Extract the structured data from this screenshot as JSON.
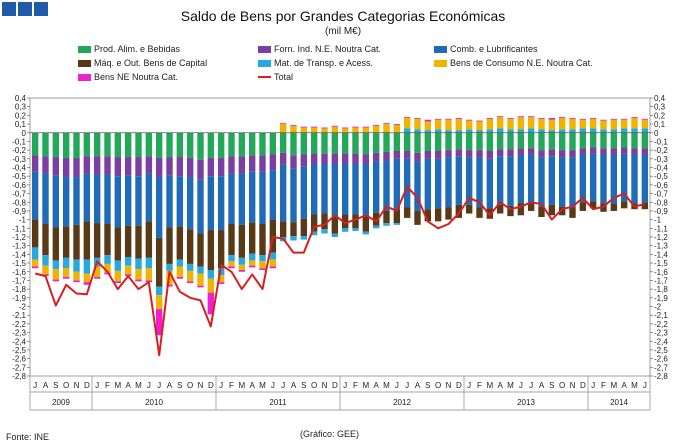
{
  "header": {
    "title": "Saldo de Bens por Grandes Categorias Económicas",
    "subtitle": "(mil M€)"
  },
  "footer": {
    "source": "Fonte: INE",
    "credit": "(Gráfico: GEE)"
  },
  "chart_data": {
    "type": "bar",
    "stacked": true,
    "title": "Saldo de Bens por Grandes Categorias Económicas",
    "ylabel": "mil M€",
    "ylim": [
      -2.8,
      0.4
    ],
    "yticks": [
      0.4,
      0.3,
      0.2,
      0.1,
      0.0,
      -0.1,
      -0.2,
      -0.3,
      -0.4,
      -0.5,
      -0.6,
      -0.7,
      -0.8,
      -0.9,
      -1.0,
      -1.1,
      -1.2,
      -1.3,
      -1.4,
      -1.5,
      -1.6,
      -1.7,
      -1.8,
      -1.9,
      -2.0,
      -2.1,
      -2.2,
      -2.3,
      -2.4,
      -2.5,
      -2.6,
      -2.7,
      -2.8
    ],
    "ytick_labels": [
      "0,4",
      "0,3",
      "0,2",
      "0,1",
      "0",
      "-0,1",
      "-0,2",
      "-0,3",
      "-0,4",
      "-0,5",
      "-0,6",
      "-0,7",
      "-0,8",
      "-0,9",
      "-1",
      "-1,1",
      "-1,2",
      "-1,3",
      "-1,4",
      "-1,5",
      "-1,6",
      "-1,7",
      "-1,8",
      "-1,9",
      "-2",
      "-2,1",
      "-2,2",
      "-2,3",
      "-2,4",
      "-2,5",
      "-2,6",
      "-2,7",
      "-2,8"
    ],
    "month_labels": [
      "J",
      "A",
      "S",
      "O",
      "N",
      "D",
      "J",
      "F",
      "M",
      "A",
      "M",
      "J",
      "J",
      "A",
      "S",
      "O",
      "N",
      "D",
      "J",
      "F",
      "M",
      "A",
      "M",
      "J",
      "J",
      "A",
      "S",
      "O",
      "N",
      "D",
      "J",
      "F",
      "M",
      "A",
      "M",
      "J",
      "J",
      "A",
      "S",
      "O",
      "N",
      "D",
      "J",
      "F",
      "M",
      "A",
      "M",
      "J",
      "J",
      "A",
      "S",
      "O",
      "N",
      "D",
      "J",
      "F",
      "M",
      "A",
      "M",
      "J"
    ],
    "year_labels": [
      {
        "label": "2009",
        "start": 0,
        "end": 5
      },
      {
        "label": "2010",
        "start": 6,
        "end": 17
      },
      {
        "label": "2011",
        "start": 18,
        "end": 29
      },
      {
        "label": "2012",
        "start": 30,
        "end": 41
      },
      {
        "label": "2013",
        "start": 42,
        "end": 53
      },
      {
        "label": "2014",
        "start": 54,
        "end": 59
      }
    ],
    "series": [
      {
        "name": "Prod. Alim. e Bebidas",
        "color": "#23a85a",
        "values": [
          -0.26,
          -0.27,
          -0.28,
          -0.29,
          -0.29,
          -0.27,
          -0.27,
          -0.27,
          -0.28,
          -0.28,
          -0.28,
          -0.27,
          -0.29,
          -0.28,
          -0.28,
          -0.29,
          -0.31,
          -0.29,
          -0.29,
          -0.27,
          -0.27,
          -0.26,
          -0.26,
          -0.25,
          -0.23,
          -0.26,
          -0.25,
          -0.24,
          -0.24,
          -0.24,
          -0.24,
          -0.24,
          -0.25,
          -0.23,
          -0.22,
          -0.21,
          -0.21,
          -0.23,
          -0.21,
          -0.21,
          -0.2,
          -0.19,
          -0.2,
          -0.2,
          -0.21,
          -0.19,
          -0.19,
          -0.18,
          -0.18,
          -0.2,
          -0.19,
          -0.2,
          -0.2,
          -0.18,
          -0.17,
          -0.18,
          -0.18,
          -0.17,
          -0.18,
          -0.18
        ]
      },
      {
        "name": "Forn. Ind. N.E. Noutra Cat.",
        "color": "#7b3fa0",
        "values": [
          -0.19,
          -0.2,
          -0.21,
          -0.22,
          -0.22,
          -0.2,
          -0.21,
          -0.21,
          -0.22,
          -0.21,
          -0.22,
          -0.2,
          -0.22,
          -0.21,
          -0.22,
          -0.22,
          -0.23,
          -0.21,
          -0.21,
          -0.2,
          -0.2,
          -0.19,
          -0.19,
          -0.18,
          -0.14,
          -0.15,
          -0.14,
          -0.12,
          -0.12,
          -0.12,
          -0.12,
          -0.12,
          -0.11,
          -0.1,
          -0.1,
          -0.09,
          -0.09,
          -0.1,
          -0.09,
          -0.09,
          -0.08,
          -0.08,
          -0.08,
          -0.08,
          -0.09,
          -0.08,
          -0.08,
          -0.07,
          -0.07,
          -0.08,
          -0.08,
          -0.08,
          -0.08,
          -0.07,
          -0.07,
          -0.07,
          -0.07,
          -0.07,
          -0.07,
          -0.07
        ]
      },
      {
        "name": "Comb. e Lubrificantes",
        "color": "#1f6bb8",
        "values": [
          -0.55,
          -0.58,
          -0.6,
          -0.57,
          -0.55,
          -0.55,
          -0.56,
          -0.57,
          -0.59,
          -0.58,
          -0.57,
          -0.55,
          -0.7,
          -0.6,
          -0.58,
          -0.6,
          -0.62,
          -0.62,
          -0.62,
          -0.58,
          -0.59,
          -0.58,
          -0.6,
          -0.57,
          -0.65,
          -0.62,
          -0.6,
          -0.58,
          -0.57,
          -0.6,
          -0.58,
          -0.58,
          -0.6,
          -0.59,
          -0.58,
          -0.58,
          -0.56,
          -0.57,
          -0.58,
          -0.57,
          -0.58,
          -0.56,
          -0.55,
          -0.58,
          -0.57,
          -0.56,
          -0.57,
          -0.56,
          -0.55,
          -0.57,
          -0.56,
          -0.57,
          -0.58,
          -0.55,
          -0.55,
          -0.56,
          -0.57,
          -0.55,
          -0.56,
          -0.55
        ]
      },
      {
        "name": "Máq. e Out. Bens de Capital",
        "color": "#5a3a16",
        "values": [
          -0.32,
          -0.36,
          -0.38,
          -0.36,
          -0.4,
          -0.44,
          -0.4,
          -0.36,
          -0.38,
          -0.36,
          -0.38,
          -0.42,
          -0.56,
          -0.42,
          -0.38,
          -0.4,
          -0.38,
          -0.46,
          -0.44,
          -0.36,
          -0.38,
          -0.36,
          -0.36,
          -0.38,
          -0.18,
          -0.16,
          -0.2,
          -0.2,
          -0.18,
          -0.2,
          -0.16,
          -0.16,
          -0.18,
          -0.15,
          -0.14,
          -0.16,
          -0.12,
          -0.16,
          -0.14,
          -0.15,
          -0.14,
          -0.15,
          -0.1,
          -0.12,
          -0.12,
          -0.1,
          -0.12,
          -0.14,
          -0.1,
          -0.12,
          -0.12,
          -0.1,
          -0.12,
          -0.1,
          -0.08,
          -0.1,
          -0.08,
          -0.08,
          -0.07,
          -0.08
        ]
      },
      {
        "name": "Mat. de Transp. e Acess.",
        "color": "#27a8e0",
        "values": [
          -0.14,
          -0.12,
          -0.1,
          -0.12,
          -0.14,
          -0.16,
          -0.1,
          -0.1,
          -0.12,
          -0.1,
          -0.12,
          -0.12,
          -0.1,
          -0.08,
          -0.08,
          -0.08,
          -0.08,
          -0.1,
          -0.08,
          -0.07,
          -0.08,
          -0.08,
          -0.07,
          -0.08,
          -0.05,
          -0.05,
          -0.04,
          -0.04,
          -0.05,
          -0.04,
          -0.04,
          -0.03,
          -0.03,
          -0.03,
          -0.03,
          -0.02,
          0.05,
          0.04,
          0.03,
          0.04,
          0.03,
          0.03,
          0.04,
          0.03,
          0.04,
          0.05,
          0.04,
          0.04,
          0.05,
          0.04,
          0.03,
          0.04,
          0.04,
          0.05,
          0.05,
          0.04,
          0.04,
          0.05,
          0.05,
          0.05
        ]
      },
      {
        "name": "Bens de Consumo N.E. Noutra Cat.",
        "color": "#f0b400",
        "values": [
          -0.08,
          -0.1,
          -0.12,
          -0.1,
          -0.1,
          -0.1,
          -0.12,
          -0.1,
          -0.12,
          -0.1,
          -0.12,
          -0.14,
          -0.16,
          -0.16,
          -0.12,
          -0.12,
          -0.14,
          -0.16,
          -0.08,
          -0.06,
          -0.06,
          -0.06,
          -0.08,
          -0.08,
          0.1,
          0.08,
          0.06,
          0.06,
          0.05,
          0.07,
          0.05,
          0.06,
          0.06,
          0.08,
          0.1,
          0.09,
          0.12,
          0.12,
          0.1,
          0.11,
          0.12,
          0.13,
          0.1,
          0.1,
          0.12,
          0.13,
          0.12,
          0.14,
          0.13,
          0.12,
          0.12,
          0.13,
          0.12,
          0.1,
          0.11,
          0.1,
          0.11,
          0.1,
          0.12,
          0.1
        ]
      },
      {
        "name": "Bens NE Noutra Cat.",
        "color": "#ee22cc",
        "values": [
          -0.02,
          -0.02,
          -0.02,
          -0.02,
          -0.02,
          -0.03,
          -0.02,
          -0.02,
          -0.02,
          -0.02,
          -0.02,
          -0.02,
          -0.3,
          -0.02,
          -0.02,
          -0.02,
          -0.02,
          -0.25,
          -0.02,
          -0.02,
          -0.02,
          -0.02,
          -0.02,
          -0.02,
          0.01,
          0.01,
          0.01,
          0.01,
          0.01,
          0.01,
          0.01,
          0.01,
          0.01,
          0.01,
          0.01,
          0.01,
          0.01,
          0.01,
          0.02,
          0.01,
          0.01,
          0.01,
          0.01,
          0.01,
          0.01,
          0.01,
          0.01,
          0.01,
          0.01,
          0.01,
          0.02,
          0.01,
          0.01,
          0.01,
          0.01,
          0.01,
          0.01,
          0.01,
          0.01,
          0.01
        ]
      }
    ],
    "total": {
      "name": "Total",
      "color": "#d62020",
      "values": [
        -1.62,
        -1.65,
        -1.99,
        -1.75,
        -1.85,
        -1.86,
        -1.48,
        -1.6,
        -1.8,
        -1.65,
        -1.8,
        -1.72,
        -2.56,
        -1.6,
        -1.83,
        -1.9,
        -1.93,
        -2.23,
        -1.52,
        -1.6,
        -1.8,
        -1.63,
        -1.8,
        -1.2,
        -1.22,
        -1.38,
        -1.38,
        -1.08,
        -1.06,
        -0.95,
        -1.04,
        -1.0,
        -0.95,
        -1.02,
        -0.85,
        -0.9,
        -0.62,
        -0.75,
        -1.02,
        -1.1,
        -1.05,
        -0.93,
        -0.75,
        -0.8,
        -0.95,
        -0.8,
        -0.88,
        -0.85,
        -0.8,
        -0.82,
        -1.0,
        -0.88,
        -0.85,
        -0.75,
        -0.88,
        -0.85,
        -0.75,
        -0.7,
        -0.85,
        -0.82
      ]
    }
  },
  "legend": {
    "items": [
      {
        "label": "Prod. Alim. e Bebidas",
        "color": "#23a85a",
        "kind": "box"
      },
      {
        "label": "Forn. Ind. N.E. Noutra Cat.",
        "color": "#7b3fa0",
        "kind": "box"
      },
      {
        "label": "Comb. e Lubrificantes",
        "color": "#1f6bb8",
        "kind": "box"
      },
      {
        "label": "Máq. e Out. Bens de Capital",
        "color": "#5a3a16",
        "kind": "box"
      },
      {
        "label": "Mat. de Transp. e Acess.",
        "color": "#27a8e0",
        "kind": "box"
      },
      {
        "label": "Bens de Consumo N.E. Noutra Cat.",
        "color": "#f0b400",
        "kind": "box"
      },
      {
        "label": "Bens NE Noutra Cat.",
        "color": "#ee22cc",
        "kind": "box"
      },
      {
        "label": "Total",
        "color": "#d62020",
        "kind": "line"
      }
    ]
  }
}
